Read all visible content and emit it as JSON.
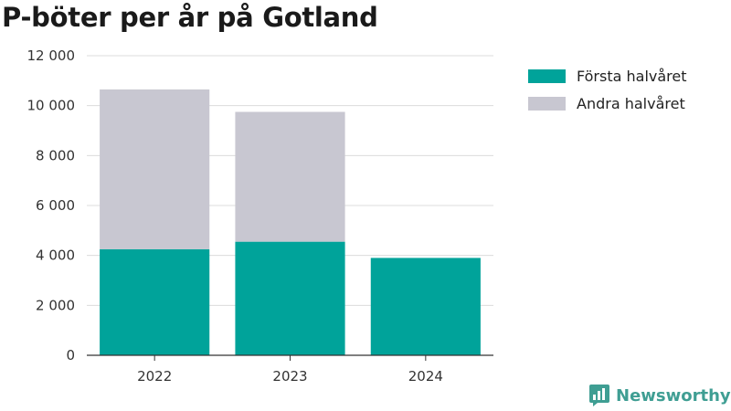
{
  "chart_data": {
    "type": "bar",
    "stacked": true,
    "title": "P-böter per år på Gotland",
    "xlabel": "",
    "ylabel": "",
    "categories": [
      "2022",
      "2023",
      "2024"
    ],
    "series": [
      {
        "name": "Första halvåret",
        "color": "#00a39a",
        "values": [
          4250,
          4550,
          3900
        ]
      },
      {
        "name": "Andra halvåret",
        "color": "#c8c7d1",
        "values": [
          6400,
          5200,
          0
        ]
      }
    ],
    "ylim": [
      0,
      12000
    ],
    "yticks": [
      0,
      2000,
      4000,
      6000,
      8000,
      10000,
      12000
    ],
    "ytick_labels": [
      "0",
      "2 000",
      "4 000",
      "6 000",
      "8 000",
      "10 000",
      "12 000"
    ],
    "grid": true,
    "legend_position": "top-right"
  },
  "branding": {
    "name": "Newsworthy",
    "color": "#3f9e93",
    "icon": "newsworthy-logo-icon"
  }
}
